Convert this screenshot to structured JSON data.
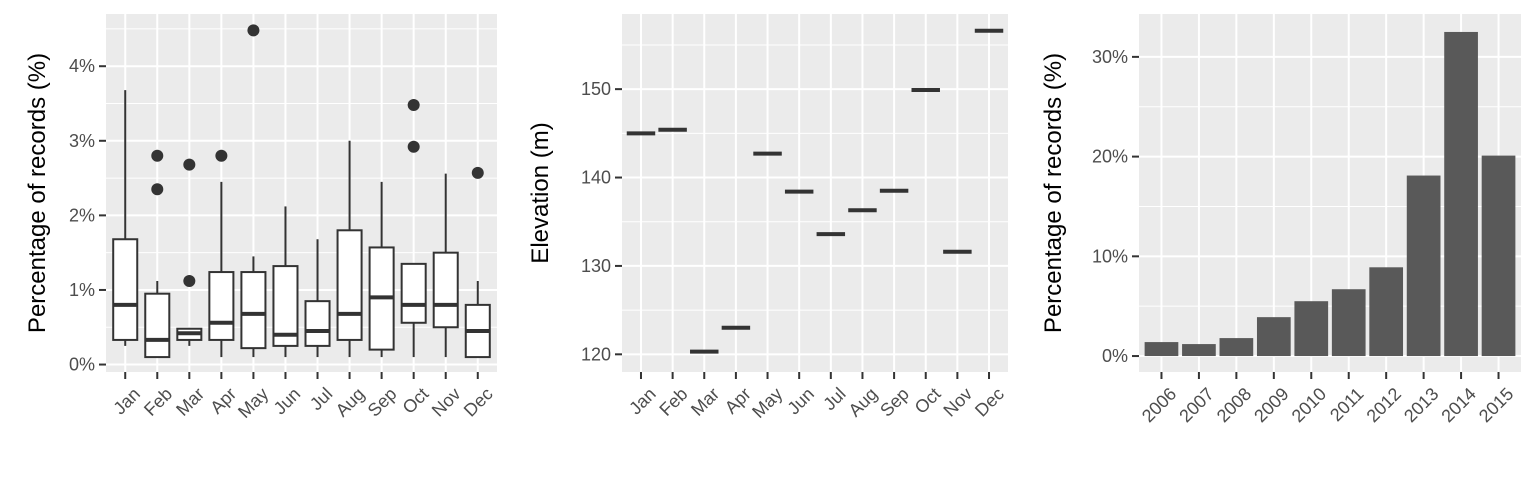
{
  "chart_data": [
    {
      "type": "boxplot",
      "ylabel": "Percentage of records (%)",
      "xlabel": "",
      "ylim": [
        -0.1,
        4.7
      ],
      "yticks": [
        0,
        1,
        2,
        3,
        4
      ],
      "ytick_labels": [
        "0%",
        "1%",
        "2%",
        "3%",
        "4%"
      ],
      "categories": [
        "Jan",
        "Feb",
        "Mar",
        "Apr",
        "May",
        "Jun",
        "Jul",
        "Aug",
        "Sep",
        "Oct",
        "Nov",
        "Dec"
      ],
      "boxes": [
        {
          "min": 0.25,
          "q1": 0.33,
          "median": 0.8,
          "q3": 1.68,
          "max": 3.68,
          "outliers": []
        },
        {
          "min": 0.1,
          "q1": 0.1,
          "median": 0.33,
          "q3": 0.95,
          "max": 1.12,
          "outliers": [
            2.35,
            2.8
          ]
        },
        {
          "min": 0.25,
          "q1": 0.33,
          "median": 0.42,
          "q3": 0.48,
          "max": 0.48,
          "outliers": [
            1.12,
            2.68
          ]
        },
        {
          "min": 0.1,
          "q1": 0.33,
          "median": 0.56,
          "q3": 1.24,
          "max": 2.45,
          "outliers": [
            2.8
          ]
        },
        {
          "min": 0.1,
          "q1": 0.22,
          "median": 0.68,
          "q3": 1.24,
          "max": 1.45,
          "outliers": [
            4.48
          ]
        },
        {
          "min": 0.1,
          "q1": 0.25,
          "median": 0.4,
          "q3": 1.32,
          "max": 2.12,
          "outliers": []
        },
        {
          "min": 0.1,
          "q1": 0.25,
          "median": 0.45,
          "q3": 0.85,
          "max": 1.68,
          "outliers": []
        },
        {
          "min": 0.1,
          "q1": 0.33,
          "median": 0.68,
          "q3": 1.8,
          "max": 3.0,
          "outliers": []
        },
        {
          "min": 0.1,
          "q1": 0.2,
          "median": 0.9,
          "q3": 1.57,
          "max": 2.45,
          "outliers": []
        },
        {
          "min": 0.1,
          "q1": 0.56,
          "median": 0.8,
          "q3": 1.35,
          "max": 1.35,
          "outliers": [
            2.92,
            3.48
          ]
        },
        {
          "min": 0.1,
          "q1": 0.5,
          "median": 0.8,
          "q3": 1.5,
          "max": 2.56,
          "outliers": []
        },
        {
          "min": 0.1,
          "q1": 0.1,
          "median": 0.45,
          "q3": 0.8,
          "max": 1.12,
          "outliers": [
            2.57
          ]
        }
      ],
      "grid": true
    },
    {
      "type": "point-range",
      "ylabel": "Elevation (m)",
      "xlabel": "",
      "ylim": [
        118,
        158.5
      ],
      "yticks": [
        120,
        130,
        140,
        150
      ],
      "ytick_labels": [
        "120",
        "130",
        "140",
        "150"
      ],
      "categories": [
        "Jan",
        "Feb",
        "Mar",
        "Apr",
        "May",
        "Jun",
        "Jul",
        "Aug",
        "Sep",
        "Oct",
        "Nov",
        "Dec"
      ],
      "values": [
        145.0,
        145.4,
        120.3,
        123.0,
        142.7,
        138.4,
        133.6,
        136.3,
        138.5,
        149.9,
        131.6,
        156.6
      ],
      "grid": true
    },
    {
      "type": "bar",
      "ylabel": "Percentage of records (%)",
      "xlabel": "",
      "ylim": [
        -1.6,
        34.3
      ],
      "yticks": [
        0,
        10,
        20,
        30
      ],
      "ytick_labels": [
        "0%",
        "10%",
        "20%",
        "30%"
      ],
      "categories": [
        "2006",
        "2007",
        "2008",
        "2009",
        "2010",
        "2011",
        "2012",
        "2013",
        "2014",
        "2015"
      ],
      "values": [
        1.4,
        1.2,
        1.8,
        3.9,
        5.5,
        6.7,
        8.9,
        18.1,
        32.5,
        20.1
      ],
      "colors": {
        "bar": "#595959"
      },
      "grid": true
    }
  ]
}
